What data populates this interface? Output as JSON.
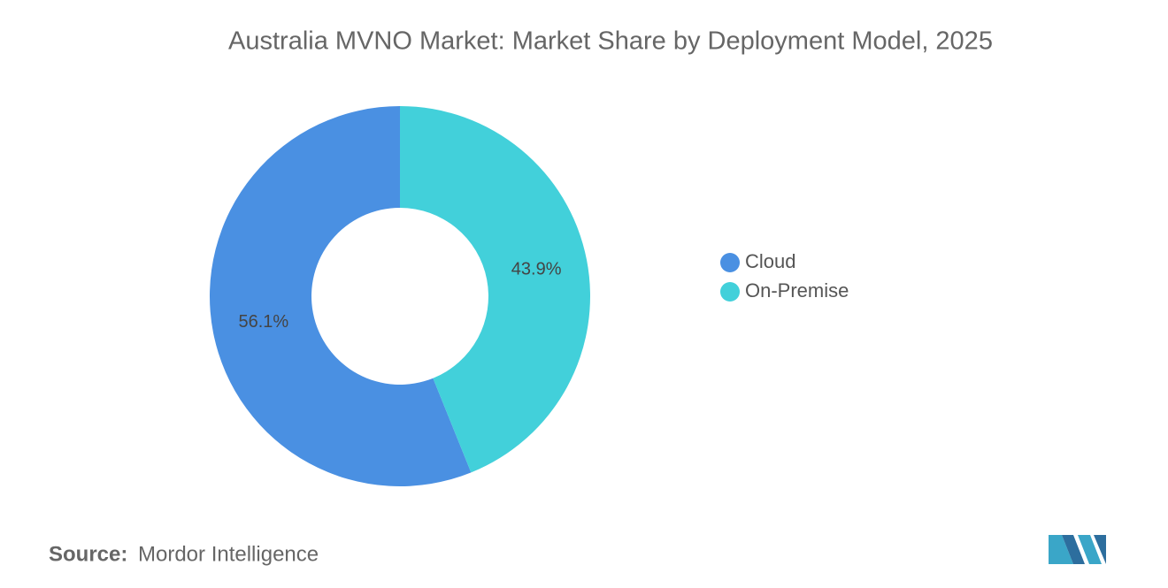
{
  "chart_data": {
    "type": "donut",
    "title": "Australia MVNO Market: Market Share by Deployment Model, 2025",
    "categories": [
      "Cloud",
      "On-Premise"
    ],
    "values": [
      56.1,
      43.9
    ],
    "value_labels": [
      "56.1%",
      "43.9%"
    ],
    "colors": [
      "#4a90e2",
      "#42d0da"
    ],
    "legend": "right",
    "source_label": "Source:",
    "source": "Mordor Intelligence"
  }
}
